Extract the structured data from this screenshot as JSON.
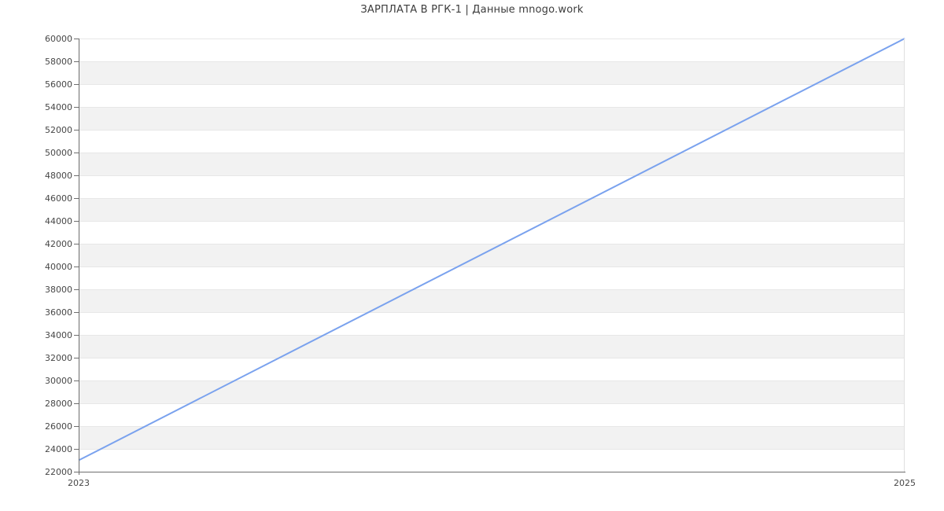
{
  "title": "ЗАРПЛАТА В РГК-1 | Данные mnogo.work",
  "colors": {
    "line": "#7aa2ee",
    "band_gray": "#f2f2f2",
    "band_white": "#ffffff",
    "gridline": "#e7e7e7",
    "axis": "#6e6e6e",
    "tick_label": "#474747",
    "title_text": "#3c3c3c"
  },
  "x_axis": {
    "labels": [
      "2023",
      "2025"
    ]
  },
  "y_axis": {
    "tick_labels": [
      "22000",
      "24000",
      "26000",
      "28000",
      "30000",
      "32000",
      "34000",
      "36000",
      "38000",
      "40000",
      "42000",
      "44000",
      "46000",
      "48000",
      "50000",
      "52000",
      "54000",
      "56000",
      "58000",
      "60000"
    ]
  },
  "chart_data": {
    "type": "line",
    "title": "ЗАРПЛАТА В РГК-1 | Данные mnogo.work",
    "series": [
      {
        "name": "ЗАРПЛАТА В РГК-1",
        "x": [
          2023,
          2025
        ],
        "y": [
          23000,
          60000
        ],
        "color": "#7aa2ee"
      }
    ],
    "xlabel": "",
    "ylabel": "",
    "xlim": [
      2023,
      2025
    ],
    "ylim": [
      22000,
      60000
    ],
    "y_tick_step": 2000,
    "x_tick_labels": [
      "2023",
      "2025"
    ],
    "y_tick_labels": [
      "22000",
      "24000",
      "26000",
      "28000",
      "30000",
      "32000",
      "34000",
      "36000",
      "38000",
      "40000",
      "42000",
      "44000",
      "46000",
      "48000",
      "50000",
      "52000",
      "54000",
      "56000",
      "58000",
      "60000"
    ],
    "legend": "none",
    "grid": "alternating horizontal gray bands every 2000, gray starting at 24000-26000"
  }
}
